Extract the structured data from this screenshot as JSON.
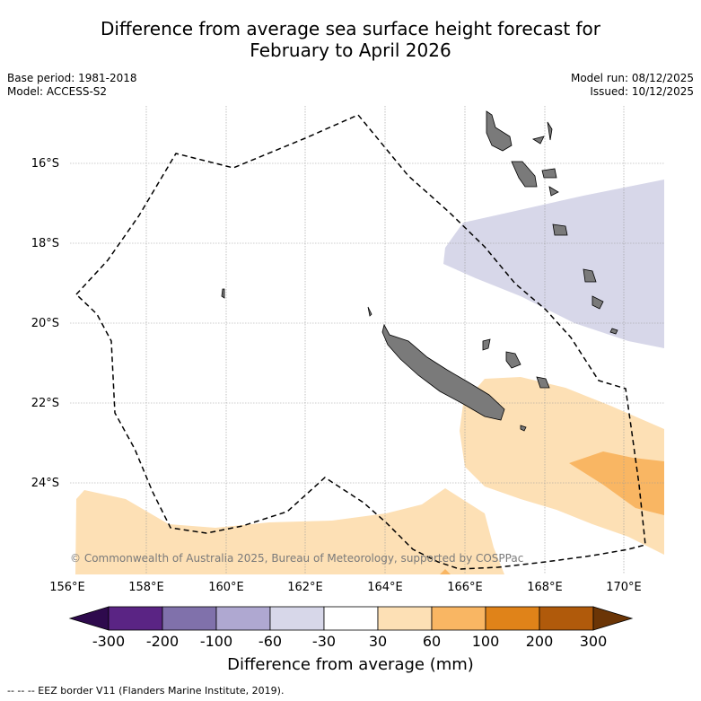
{
  "title_line1": "Difference from average sea surface height forecast for",
  "title_line2": "February to April 2026",
  "meta_left": [
    "Base period: 1981-2018",
    "Model: ACCESS-S2"
  ],
  "meta_right": [
    "Model run: 08/12/2025",
    "Issued: 10/12/2025"
  ],
  "lat_labels": [
    "16°S",
    "18°S",
    "20°S",
    "22°S",
    "24°S"
  ],
  "lon_labels": [
    "156°E",
    "158°E",
    "160°E",
    "162°E",
    "164°E",
    "166°E",
    "168°E",
    "170°E"
  ],
  "copyright": "© Commonwealth of Australia 2025, Bureau of Meteorology, supported by COSPPac",
  "colorbar": {
    "ticks": [
      "-300",
      "-200",
      "-100",
      "-60",
      "-30",
      "30",
      "60",
      "100",
      "200",
      "300"
    ],
    "colors": [
      "#2e0a4d",
      "#5a2484",
      "#8071ab",
      "#afa8d1",
      "#d7d7e9",
      "#ffffff",
      "#fde0b5",
      "#f9b663",
      "#e08319",
      "#b05a0b",
      "#6b3506"
    ],
    "label": "Difference from average (mm)"
  },
  "footer": "-- -- -- EEZ border V11 (Flanders Marine Institute, 2019)."
}
